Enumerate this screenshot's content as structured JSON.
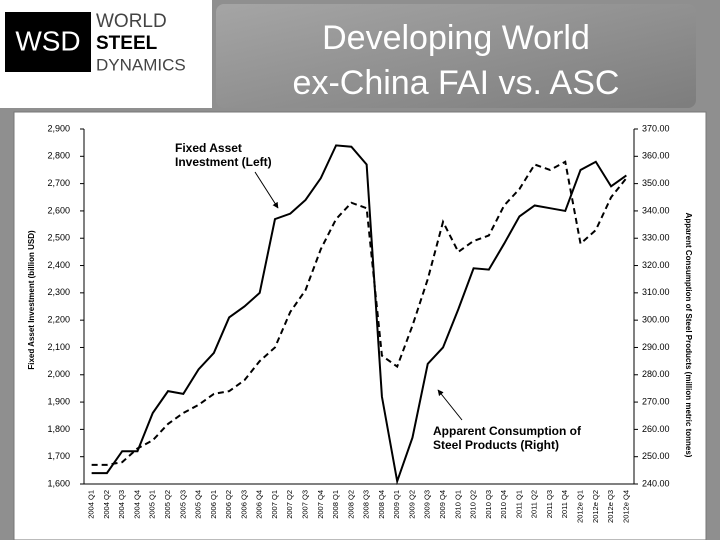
{
  "logo": {
    "mark": "WSD",
    "lines": [
      "WORLD",
      "STEEL",
      "DYNAMICS"
    ]
  },
  "title_lines": [
    "Developing World",
    "ex-China FAI vs. ASC"
  ],
  "chart_data": {
    "type": "line",
    "ylabel": "Fixed Asset Investment (billion USD)",
    "y2label": "Apparent Consumption of Steel Products (million metric tonnes)",
    "annotations": [
      [
        "Fixed Asset",
        "Investment (Left)"
      ],
      [
        "Apparent Consumption of",
        "Steel Products (Right)"
      ]
    ],
    "categories": [
      "2004 Q1",
      "2004 Q2",
      "2004 Q3",
      "2004 Q4",
      "2005 Q1",
      "2005 Q2",
      "2005 Q3",
      "2005 Q4",
      "2006 Q1",
      "2006 Q2",
      "2006 Q3",
      "2006 Q4",
      "2007 Q1",
      "2007 Q2",
      "2007 Q3",
      "2007 Q4",
      "2008 Q1",
      "2008 Q2",
      "2008 Q3",
      "2008 Q4",
      "2009 Q1",
      "2009 Q2",
      "2009 Q3",
      "2009 Q4",
      "2010 Q1",
      "2010 Q2",
      "2010 Q3",
      "2010 Q4",
      "2011 Q1",
      "2011 Q2",
      "2011 Q3",
      "2011 Q4",
      "2012e Q1",
      "2012e Q2",
      "2012e Q3",
      "2012e Q4"
    ],
    "series": [
      {
        "color": "#000000",
        "dash": false,
        "values": [
          1640,
          1640,
          1720,
          1720,
          1860,
          1940,
          1930,
          2020,
          2080,
          2210,
          2250,
          2300,
          2570,
          2590,
          2640,
          2720,
          2840,
          2835,
          2770,
          1920,
          1610,
          1770,
          2040,
          2100,
          2240,
          2390,
          2385,
          2480,
          2580,
          2620,
          2610,
          2600,
          2750,
          2780,
          2690,
          2730
        ]
      },
      {
        "color": "#000000",
        "dash": true,
        "axis": "y2",
        "values": [
          247,
          247,
          248,
          253,
          256,
          262,
          266,
          269,
          273,
          274,
          278,
          285,
          290,
          303,
          311,
          326,
          337,
          343,
          341,
          287,
          283,
          298,
          315,
          336,
          325,
          329,
          331,
          342,
          348,
          357,
          355,
          358,
          328,
          333,
          345,
          352
        ]
      }
    ],
    "ylim": [
      1600,
      2900
    ],
    "yticks": [
      {
        "value": 1600,
        "label": "1,600"
      },
      {
        "value": 1700,
        "label": "1,700"
      },
      {
        "value": 1800,
        "label": "1,800"
      },
      {
        "value": 1900,
        "label": "1,900"
      },
      {
        "value": 2000,
        "label": "2,000"
      },
      {
        "value": 2100,
        "label": "2,100"
      },
      {
        "value": 2200,
        "label": "2,200"
      },
      {
        "value": 2300,
        "label": "2,300"
      },
      {
        "value": 2400,
        "label": "2,400"
      },
      {
        "value": 2500,
        "label": "2,500"
      },
      {
        "value": 2600,
        "label": "2,600"
      },
      {
        "value": 2700,
        "label": "2,700"
      },
      {
        "value": 2800,
        "label": "2,800"
      },
      {
        "value": 2900,
        "label": "2,900"
      }
    ],
    "y2lim": [
      240,
      370
    ],
    "y2ticks": [
      {
        "value": 240,
        "label": "240.00"
      },
      {
        "value": 250,
        "label": "250.00"
      },
      {
        "value": 260,
        "label": "260.00"
      },
      {
        "value": 270,
        "label": "270.00"
      },
      {
        "value": 280,
        "label": "280.00"
      },
      {
        "value": 290,
        "label": "290.00"
      },
      {
        "value": 300,
        "label": "300.00"
      },
      {
        "value": 310,
        "label": "310.00"
      },
      {
        "value": 320,
        "label": "320.00"
      },
      {
        "value": 330,
        "label": "330.00"
      },
      {
        "value": 340,
        "label": "340.00"
      },
      {
        "value": 350,
        "label": "350.00"
      },
      {
        "value": 360,
        "label": "360.00"
      },
      {
        "value": 370,
        "label": "370.00"
      }
    ]
  }
}
